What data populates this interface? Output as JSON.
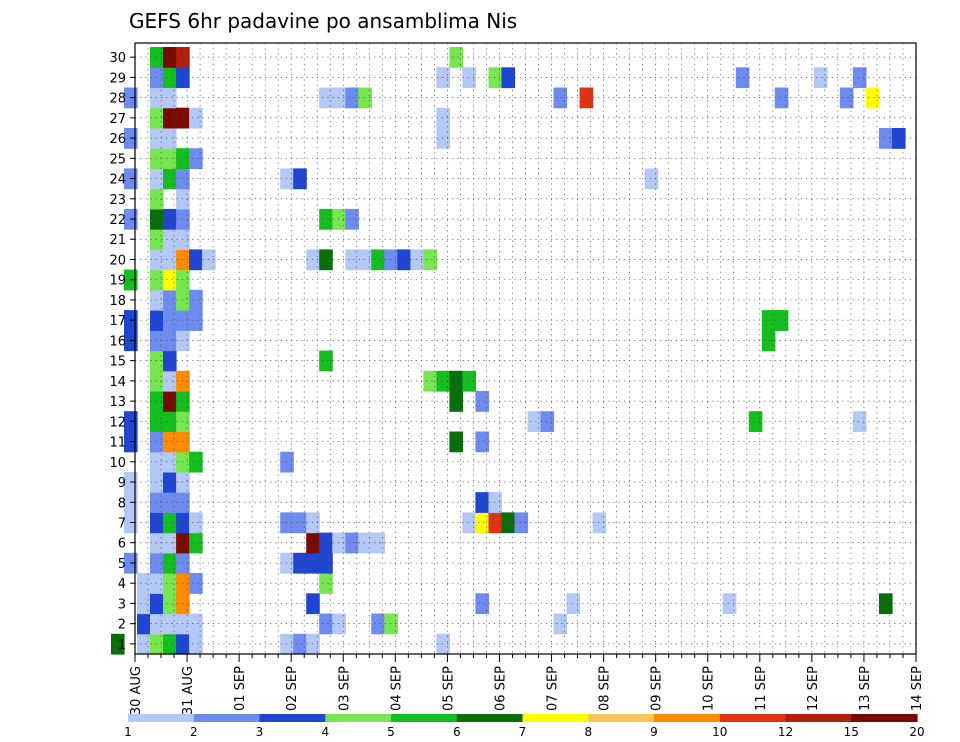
{
  "chart_data": {
    "type": "heatmap",
    "title": "GEFS 6hr padavine po ansamblima Nis",
    "y_categories": [
      "1",
      "2",
      "3",
      "4",
      "5",
      "6",
      "7",
      "8",
      "9",
      "10",
      "11",
      "12",
      "13",
      "14",
      "15",
      "16",
      "17",
      "18",
      "19",
      "20",
      "21",
      "22",
      "23",
      "24",
      "25",
      "26",
      "27",
      "28",
      "29",
      "30"
    ],
    "x_tick_labels": [
      "30 AUG",
      "31 AUG",
      "01 SEP",
      "02 SEP",
      "03 SEP",
      "04 SEP",
      "05 SEP",
      "06 SEP",
      "07 SEP",
      "08 SEP",
      "09 SEP",
      "10 SEP",
      "11 SEP",
      "12 SEP",
      "13 SEP",
      "14 SEP"
    ],
    "x_ticks_per_label": 4,
    "x_step": "6hr",
    "grid": true,
    "color_levels": [
      {
        "value": "1",
        "color": "#b4c8f5"
      },
      {
        "value": "2",
        "color": "#6e8cf0"
      },
      {
        "value": "3",
        "color": "#1e46d2"
      },
      {
        "value": "4",
        "color": "#78e650"
      },
      {
        "value": "5",
        "color": "#14be1e"
      },
      {
        "value": "6",
        "color": "#0a6e0a"
      },
      {
        "value": "7",
        "color": "#ffff00"
      },
      {
        "value": "8",
        "color": "#ffc35a"
      },
      {
        "value": "10",
        "color": "#ff8c00"
      },
      {
        "value": "12",
        "color": "#e13214"
      },
      {
        "value": "15",
        "color": "#b41e0a"
      },
      {
        "value": "20",
        "color": "#780a00"
      }
    ],
    "color_labels": [
      "1",
      "2",
      "3",
      "4",
      "5",
      "6",
      "7",
      "8",
      "9",
      "10",
      "12",
      "15",
      "20"
    ],
    "cells": [
      [
        5,
        1,
        1
      ],
      [
        5,
        2,
        3
      ],
      [
        5,
        3,
        1
      ],
      [
        5,
        4,
        1
      ],
      [
        6,
        5,
        1
      ],
      [
        6,
        6,
        1
      ],
      [
        6,
        8,
        1
      ],
      [
        6,
        9,
        1
      ],
      [
        6,
        13,
        1
      ],
      [
        6,
        14,
        1
      ],
      [
        6,
        15,
        1
      ],
      [
        6,
        16,
        1
      ],
      [
        6,
        17,
        1
      ],
      [
        6,
        18,
        1
      ],
      [
        6,
        19,
        1
      ],
      [
        6,
        20,
        1
      ],
      [
        6,
        21,
        1
      ],
      [
        6,
        22,
        1
      ],
      [
        6,
        23,
        1
      ],
      [
        6,
        24,
        1
      ],
      [
        6,
        25,
        1
      ],
      [
        6,
        28,
        1
      ],
      [
        6,
        29,
        1
      ],
      [
        6,
        27,
        1
      ],
      [
        4,
        5,
        2
      ],
      [
        4,
        7,
        1
      ],
      [
        4,
        8,
        1
      ],
      [
        4,
        9,
        1
      ],
      [
        4,
        11,
        3
      ],
      [
        4,
        12,
        3
      ],
      [
        4,
        16,
        3
      ],
      [
        4,
        17,
        3
      ],
      [
        4,
        19,
        5
      ],
      [
        4,
        22,
        2
      ],
      [
        4,
        24,
        2
      ],
      [
        4,
        26,
        2
      ],
      [
        4,
        28,
        2
      ],
      [
        3,
        1,
        6
      ],
      [
        6,
        1,
        4
      ],
      [
        6,
        2,
        1
      ],
      [
        6,
        3,
        3
      ],
      [
        6,
        4,
        1
      ],
      [
        6,
        5,
        2
      ],
      [
        6,
        6,
        1
      ],
      [
        6,
        7,
        3
      ],
      [
        6,
        8,
        2
      ],
      [
        6,
        9,
        1
      ],
      [
        6,
        10,
        1
      ],
      [
        6,
        11,
        2
      ],
      [
        6,
        12,
        5
      ],
      [
        6,
        13,
        5
      ],
      [
        6,
        14,
        4
      ],
      [
        6,
        15,
        4
      ],
      [
        6,
        16,
        2
      ],
      [
        6,
        17,
        3
      ],
      [
        6,
        18,
        1
      ],
      [
        6,
        19,
        4
      ],
      [
        6,
        20,
        1
      ],
      [
        6,
        21,
        4
      ],
      [
        6,
        22,
        6
      ],
      [
        6,
        23,
        4
      ],
      [
        6,
        24,
        1
      ],
      [
        6,
        25,
        4
      ],
      [
        6,
        26,
        1
      ],
      [
        6,
        27,
        4
      ],
      [
        6,
        28,
        1
      ],
      [
        6,
        29,
        2
      ],
      [
        6,
        30,
        5
      ],
      [
        7,
        1,
        5
      ],
      [
        7,
        2,
        1
      ],
      [
        7,
        3,
        4
      ],
      [
        7,
        4,
        4
      ],
      [
        7,
        5,
        5
      ],
      [
        7,
        6,
        1
      ],
      [
        7,
        7,
        5
      ],
      [
        7,
        8,
        2
      ],
      [
        7,
        9,
        3
      ],
      [
        7,
        10,
        1
      ],
      [
        7,
        11,
        9
      ],
      [
        7,
        12,
        5
      ],
      [
        7,
        13,
        12
      ],
      [
        7,
        14,
        1
      ],
      [
        7,
        15,
        3
      ],
      [
        7,
        16,
        2
      ],
      [
        7,
        17,
        2
      ],
      [
        7,
        18,
        2
      ],
      [
        7,
        19,
        7
      ],
      [
        7,
        20,
        1
      ],
      [
        7,
        21,
        1
      ],
      [
        7,
        22,
        3
      ],
      [
        7,
        24,
        5
      ],
      [
        7,
        25,
        4
      ],
      [
        7,
        26,
        1
      ],
      [
        7,
        27,
        12
      ],
      [
        7,
        28,
        1
      ],
      [
        7,
        29,
        5
      ],
      [
        7,
        30,
        12
      ],
      [
        8,
        1,
        3
      ],
      [
        8,
        2,
        1
      ],
      [
        8,
        3,
        9
      ],
      [
        8,
        4,
        9
      ],
      [
        8,
        5,
        2
      ],
      [
        8,
        6,
        12
      ],
      [
        8,
        7,
        3
      ],
      [
        8,
        8,
        2
      ],
      [
        8,
        9,
        1
      ],
      [
        8,
        10,
        4
      ],
      [
        8,
        11,
        9
      ],
      [
        8,
        12,
        4
      ],
      [
        8,
        13,
        5
      ],
      [
        8,
        14,
        9
      ],
      [
        8,
        16,
        1
      ],
      [
        8,
        17,
        2
      ],
      [
        8,
        18,
        4
      ],
      [
        8,
        19,
        4
      ],
      [
        8,
        20,
        9
      ],
      [
        8,
        21,
        1
      ],
      [
        8,
        22,
        2
      ],
      [
        8,
        23,
        1
      ],
      [
        8,
        24,
        2
      ],
      [
        8,
        25,
        5
      ],
      [
        8,
        27,
        13
      ],
      [
        8,
        29,
        3
      ],
      [
        8,
        30,
        11
      ],
      [
        9,
        1,
        1
      ],
      [
        9,
        2,
        1
      ],
      [
        9,
        4,
        2
      ],
      [
        9,
        6,
        5
      ],
      [
        9,
        7,
        1
      ],
      [
        9,
        10,
        5
      ],
      [
        9,
        17,
        2
      ],
      [
        9,
        18,
        2
      ],
      [
        9,
        20,
        3
      ],
      [
        9,
        25,
        2
      ],
      [
        9,
        27,
        1
      ],
      [
        10,
        20,
        1
      ],
      [
        16,
        1,
        1
      ],
      [
        16,
        5,
        1
      ],
      [
        16,
        7,
        2
      ],
      [
        16,
        10,
        2
      ],
      [
        16,
        24,
        1
      ],
      [
        17,
        1,
        2
      ],
      [
        17,
        5,
        3
      ],
      [
        17,
        7,
        2
      ],
      [
        17,
        24,
        3
      ],
      [
        18,
        1,
        1
      ],
      [
        18,
        3,
        3
      ],
      [
        18,
        5,
        3
      ],
      [
        18,
        6,
        12
      ],
      [
        18,
        7,
        1
      ],
      [
        18,
        20,
        1
      ],
      [
        19,
        2,
        2
      ],
      [
        19,
        4,
        4
      ],
      [
        19,
        5,
        3
      ],
      [
        19,
        6,
        3
      ],
      [
        19,
        15,
        5
      ],
      [
        19,
        20,
        6
      ],
      [
        19,
        22,
        5
      ],
      [
        19,
        28,
        1
      ],
      [
        20,
        2,
        1
      ],
      [
        20,
        6,
        1
      ],
      [
        20,
        22,
        4
      ],
      [
        20,
        28,
        1
      ],
      [
        21,
        6,
        2
      ],
      [
        21,
        20,
        1
      ],
      [
        21,
        22,
        2
      ],
      [
        21,
        28,
        2
      ],
      [
        22,
        6,
        1
      ],
      [
        22,
        20,
        1
      ],
      [
        22,
        28,
        4
      ],
      [
        23,
        2,
        2
      ],
      [
        23,
        6,
        1
      ],
      [
        23,
        20,
        5
      ],
      [
        24,
        2,
        4
      ],
      [
        24,
        20,
        2
      ],
      [
        25,
        20,
        3
      ],
      [
        26,
        20,
        1
      ],
      [
        27,
        14,
        4
      ],
      [
        27,
        20,
        4
      ],
      [
        28,
        1,
        1
      ],
      [
        28,
        14,
        5
      ],
      [
        28,
        26,
        1
      ],
      [
        28,
        27,
        1
      ],
      [
        28,
        29,
        1
      ],
      [
        29,
        11,
        6
      ],
      [
        29,
        13,
        6
      ],
      [
        29,
        14,
        6
      ],
      [
        29,
        30,
        4
      ],
      [
        30,
        7,
        1
      ],
      [
        30,
        14,
        5
      ],
      [
        30,
        29,
        1
      ],
      [
        31,
        3,
        2
      ],
      [
        31,
        7,
        7
      ],
      [
        31,
        8,
        3
      ],
      [
        31,
        11,
        2
      ],
      [
        31,
        13,
        2
      ],
      [
        32,
        7,
        10
      ],
      [
        32,
        8,
        1
      ],
      [
        32,
        29,
        4
      ],
      [
        33,
        7,
        6
      ],
      [
        33,
        29,
        3
      ],
      [
        34,
        7,
        2
      ],
      [
        35,
        12,
        1
      ],
      [
        36,
        12,
        2
      ],
      [
        37,
        2,
        1
      ],
      [
        37,
        28,
        2
      ],
      [
        38,
        3,
        1
      ],
      [
        39,
        28,
        10
      ],
      [
        40,
        7,
        1
      ],
      [
        44,
        24,
        1
      ],
      [
        50,
        3,
        1
      ],
      [
        51,
        29,
        2
      ],
      [
        52,
        12,
        5
      ],
      [
        53,
        17,
        5
      ],
      [
        53,
        16,
        5
      ],
      [
        54,
        17,
        5
      ],
      [
        54,
        28,
        2
      ],
      [
        57,
        29,
        1
      ],
      [
        59,
        28,
        2
      ],
      [
        60,
        12,
        1
      ],
      [
        60,
        29,
        2
      ],
      [
        61,
        28,
        7
      ],
      [
        62,
        3,
        6
      ],
      [
        62,
        26,
        2
      ],
      [
        63,
        26,
        3
      ]
    ]
  }
}
